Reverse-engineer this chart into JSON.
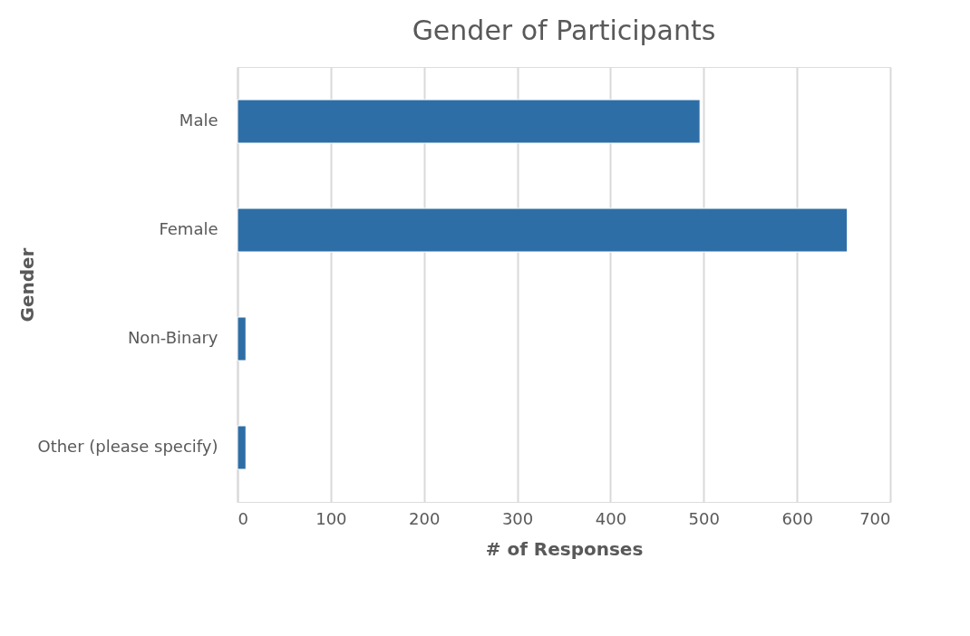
{
  "chart_data": {
    "type": "bar",
    "orientation": "horizontal",
    "title": "Gender of Participants",
    "xlabel": "# of Responses",
    "ylabel": "Gender",
    "categories": [
      "Male",
      "Female",
      "Non-Binary",
      "Other (please specify)"
    ],
    "values": [
      496,
      654,
      9,
      9
    ],
    "color": "#2e6ea6",
    "xlim": [
      0,
      700
    ],
    "xticks": [
      0,
      100,
      200,
      300,
      400,
      500,
      600,
      700
    ],
    "grid": "x"
  }
}
